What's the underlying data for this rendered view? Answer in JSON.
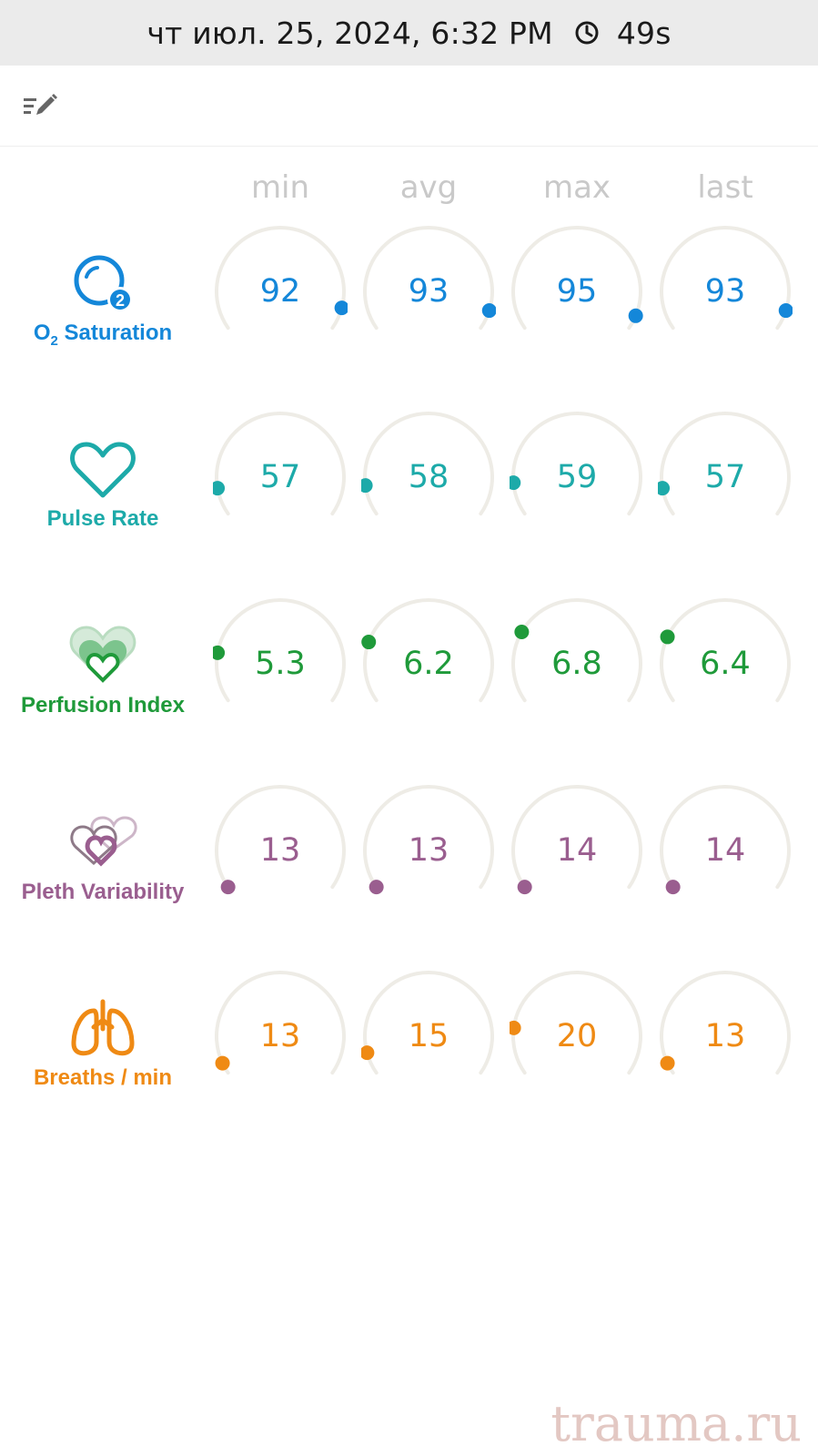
{
  "status_bar": {
    "datetime": "чт июл. 25, 2024, 6:32 PM",
    "duration": "49s",
    "clock_icon": "clock-icon"
  },
  "toolbar": {
    "edit_icon": "edit-list-icon"
  },
  "columns": [
    "min",
    "avg",
    "max",
    "last"
  ],
  "metrics": [
    {
      "id": "o2",
      "label_main": "O",
      "label_sub": "2",
      "label_rest": " Saturation",
      "color": "#1487d9",
      "icon": "o2-bubble-icon",
      "values": [
        "92",
        "93",
        "95",
        "93"
      ]
    },
    {
      "id": "pulse",
      "label": "Pulse Rate",
      "color": "#1daaa9",
      "icon": "heart-outline-icon",
      "values": [
        "57",
        "58",
        "59",
        "57"
      ]
    },
    {
      "id": "pi",
      "label": "Perfusion Index",
      "color": "#1f9a3a",
      "icon": "perfusion-hearts-icon",
      "values": [
        "5.3",
        "6.2",
        "6.8",
        "6.4"
      ]
    },
    {
      "id": "pvi",
      "label": "Pleth Variability",
      "color": "#9a5e8f",
      "icon": "pleth-hearts-icon",
      "values": [
        "13",
        "13",
        "14",
        "14"
      ]
    },
    {
      "id": "rr",
      "label": "Breaths / min",
      "color": "#ef8a14",
      "icon": "lungs-icon",
      "values": [
        "13",
        "15",
        "20",
        "13"
      ]
    }
  ],
  "gauge_levels": [
    [
      0.92,
      0.93,
      0.95,
      0.93
    ],
    [
      0.1,
      0.11,
      0.12,
      0.1
    ],
    [
      0.18,
      0.22,
      0.26,
      0.24
    ],
    [
      0.0,
      0.0,
      0.0,
      0.0
    ],
    [
      0.04,
      0.08,
      0.17,
      0.04
    ]
  ],
  "watermark": "trauma.ru"
}
